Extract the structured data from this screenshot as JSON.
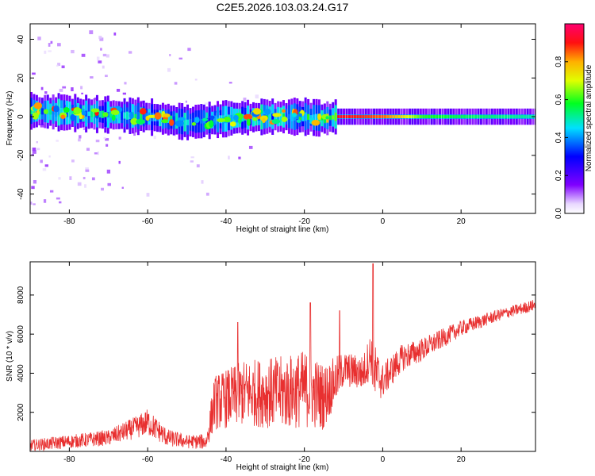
{
  "title": "C2E5.2026.103.03.24.G17",
  "chart_data": [
    {
      "type": "heatmap",
      "xlabel": "Height of straight line (km)",
      "ylabel": "Frequency (Hz)",
      "xlim": [
        -90,
        39
      ],
      "ylim": [
        -50,
        48
      ],
      "xticks": [
        -80,
        -60,
        -40,
        -20,
        0,
        20
      ],
      "yticks": [
        -40,
        -20,
        0,
        20,
        40
      ],
      "colorbar": {
        "label": "Normalized spectral amplitude",
        "range": [
          0,
          1
        ],
        "ticks": [
          "0.0",
          "0.2",
          "0.4",
          "0.6",
          "0.8"
        ],
        "colormap": "rainbow (white-lavender, purple, blue, cyan, green, yellow, orange, red, magenta)"
      },
      "ridge": {
        "description": "dominant spectral ridge near 0 Hz",
        "x": [
          -90,
          -80,
          -70,
          -60,
          -50,
          -45,
          -40,
          -30,
          -20,
          -15,
          -12,
          0,
          10,
          20,
          39
        ],
        "center_freq": [
          3,
          2,
          1,
          0,
          -3,
          -2,
          -1,
          0,
          0,
          -1,
          0,
          0,
          0,
          0,
          0
        ],
        "amplitude": [
          0.45,
          0.5,
          0.45,
          0.5,
          0.4,
          0.35,
          0.45,
          0.4,
          0.55,
          0.6,
          0.92,
          0.85,
          0.6,
          0.55,
          0.5
        ]
      }
    },
    {
      "type": "line",
      "xlabel": "Height of straight line (km)",
      "ylabel": "SNR (10 * v/v)",
      "xlim": [
        -90,
        39
      ],
      "ylim": [
        0,
        9700
      ],
      "xticks": [
        -80,
        -60,
        -40,
        -20,
        0,
        20
      ],
      "yticks": [
        2000,
        4000,
        6000,
        8000
      ],
      "color": "#e83030",
      "envelope": {
        "x": [
          -90,
          -80,
          -70,
          -62,
          -60,
          -55,
          -50,
          -45,
          -43,
          -35,
          -25,
          -20,
          -15,
          -10,
          -5,
          -3,
          -2,
          0,
          5,
          10,
          20,
          30,
          39
        ],
        "mean": [
          300,
          500,
          700,
          1300,
          1500,
          700,
          500,
          500,
          2500,
          3000,
          3000,
          3200,
          2800,
          4200,
          4000,
          5000,
          4000,
          3600,
          4800,
          5200,
          6300,
          7000,
          7500
        ],
        "noise": [
          300,
          350,
          400,
          600,
          700,
          450,
          350,
          400,
          1400,
          1700,
          1900,
          2000,
          1700,
          900,
          900,
          1200,
          1500,
          900,
          700,
          600,
          400,
          300,
          300
        ]
      },
      "peaks": [
        {
          "x": -2.5,
          "y": 9600
        },
        {
          "x": -18.5,
          "y": 7600
        },
        {
          "x": -11,
          "y": 7200
        },
        {
          "x": -37,
          "y": 6600
        }
      ]
    }
  ]
}
